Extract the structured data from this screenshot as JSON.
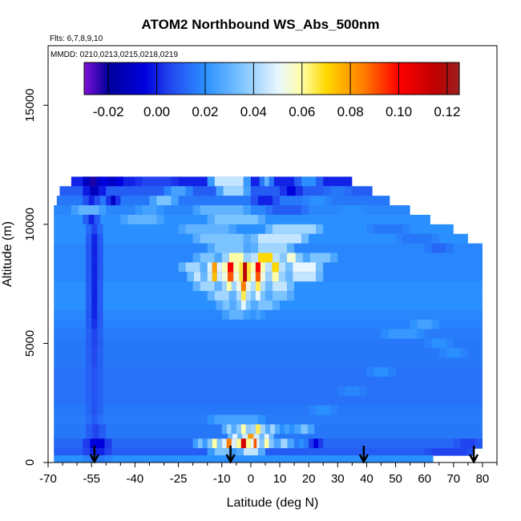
{
  "chart_data": {
    "type": "heatmap",
    "title": "ATOM2 Northbound WS_Abs_500nm",
    "subtitle_flights": "Flts: 6,7,8,9,10",
    "subtitle_dates": "MMDD: 0210,0213,0215,0218,0219",
    "xlabel": "Latitude (deg N)",
    "ylabel": "Altitude (m)",
    "xlim": [
      -70,
      85
    ],
    "ylim": [
      0,
      17500
    ],
    "x_ticks": [
      -70,
      -55,
      -40,
      -25,
      -10,
      0,
      10,
      20,
      30,
      40,
      50,
      60,
      70,
      80
    ],
    "x_minor_ticks": [
      -65,
      -60,
      -50,
      -45,
      -35,
      -30,
      -20,
      -15,
      -5,
      5,
      15,
      25,
      35,
      45,
      55,
      65,
      75,
      85
    ],
    "y_ticks": [
      0,
      5000,
      10000,
      15000
    ],
    "colorbar": {
      "range": [
        -0.03,
        0.125
      ],
      "ticks": [
        -0.02,
        0.0,
        0.02,
        0.04,
        0.06,
        0.08,
        0.1,
        0.12
      ],
      "tick_labels": [
        "-0.02",
        "0.00",
        "0.02",
        "0.04",
        "0.06",
        "0.08",
        "0.10",
        "0.12"
      ],
      "color_stops": [
        {
          "value": -0.03,
          "color": "#7f10d8"
        },
        {
          "value": -0.02,
          "color": "#00009a"
        },
        {
          "value": -0.005,
          "color": "#0000dd"
        },
        {
          "value": 0.005,
          "color": "#2244ee"
        },
        {
          "value": 0.02,
          "color": "#2a90ff"
        },
        {
          "value": 0.035,
          "color": "#7cc4ff"
        },
        {
          "value": 0.05,
          "color": "#e8f6ff"
        },
        {
          "value": 0.06,
          "color": "#ffffa8"
        },
        {
          "value": 0.07,
          "color": "#ffd800"
        },
        {
          "value": 0.085,
          "color": "#ff8000"
        },
        {
          "value": 0.1,
          "color": "#ff0000"
        },
        {
          "value": 0.115,
          "color": "#c00000"
        },
        {
          "value": 0.125,
          "color": "#9b2020"
        }
      ]
    },
    "flight_track_latitudes": [
      -54,
      -7,
      39,
      77
    ],
    "cells": [
      {
        "alt": [
          11600,
          12000
        ],
        "lat": [
          -62,
          35
        ],
        "v": 0.0,
        "feat": [
          [
            -58,
            -51,
            -0.022
          ],
          [
            -52,
            -44,
            -0.01
          ],
          [
            -40,
            -25,
            0.005
          ],
          [
            -15,
            0,
            0.045
          ],
          [
            3,
            8,
            0.03
          ],
          [
            15,
            25,
            0.02
          ]
        ]
      },
      {
        "alt": [
          11200,
          11600
        ],
        "lat": [
          -66,
          42
        ],
        "v": 0.01,
        "feat": [
          [
            -58,
            -50,
            -0.012
          ],
          [
            -30,
            -20,
            0.025
          ],
          [
            -12,
            0,
            0.04
          ],
          [
            10,
            18,
            -0.005
          ],
          [
            25,
            35,
            0.015
          ]
        ]
      },
      {
        "alt": [
          10800,
          11200
        ],
        "lat": [
          -67,
          48
        ],
        "v": 0.015,
        "feat": [
          [
            -58,
            -52,
            0.0
          ],
          [
            -50,
            -45,
            -0.01
          ],
          [
            -35,
            -25,
            0.035
          ],
          [
            0,
            10,
            0.0
          ],
          [
            18,
            28,
            0.02
          ]
        ]
      },
      {
        "alt": [
          10400,
          10800
        ],
        "lat": [
          -68,
          55
        ],
        "v": 0.018,
        "feat": [
          [
            -62,
            -50,
            0.03
          ],
          [
            -40,
            -30,
            0.025
          ],
          [
            -20,
            0,
            0.03
          ],
          [
            5,
            20,
            0.01
          ],
          [
            30,
            40,
            0.02
          ]
        ]
      },
      {
        "alt": [
          10000,
          10400
        ],
        "lat": [
          -68,
          62
        ],
        "v": 0.02,
        "feat": [
          [
            -58,
            -52,
            0.0
          ],
          [
            -45,
            -30,
            0.03
          ],
          [
            -15,
            5,
            0.035
          ],
          [
            20,
            35,
            0.02
          ]
        ]
      },
      {
        "alt": [
          9600,
          10000
        ],
        "lat": [
          -68,
          70
        ],
        "v": 0.02,
        "feat": [
          [
            -57,
            -51,
            0.005
          ],
          [
            -25,
            -5,
            0.03
          ],
          [
            5,
            25,
            0.04
          ],
          [
            40,
            55,
            0.015
          ]
        ]
      },
      {
        "alt": [
          9200,
          9600
        ],
        "lat": [
          -68,
          75
        ],
        "v": 0.02,
        "feat": [
          [
            -57,
            -51,
            0.0
          ],
          [
            -20,
            0,
            0.035
          ],
          [
            0,
            20,
            0.045
          ],
          [
            50,
            65,
            0.015
          ]
        ]
      },
      {
        "alt": [
          8800,
          9200
        ],
        "lat": [
          -68,
          80
        ],
        "v": 0.018,
        "feat": [
          [
            -57,
            -51,
            0.0
          ],
          [
            -15,
            0,
            0.035
          ],
          [
            0,
            15,
            0.04
          ],
          [
            60,
            70,
            0.012
          ]
        ]
      },
      {
        "alt": [
          8400,
          8800
        ],
        "lat": [
          -68,
          80
        ],
        "v": 0.018,
        "feat": [
          [
            -57,
            -51,
            0.0
          ],
          [
            -20,
            -10,
            0.035
          ],
          [
            -10,
            0,
            0.06
          ],
          [
            0,
            10,
            0.07
          ],
          [
            10,
            18,
            0.055
          ],
          [
            18,
            30,
            0.035
          ]
        ]
      },
      {
        "alt": [
          8000,
          8400
        ],
        "lat": [
          -68,
          80
        ],
        "v": 0.018,
        "feat": [
          [
            -57,
            -51,
            0.0
          ],
          [
            -25,
            -15,
            0.04
          ],
          [
            -15,
            -10,
            0.08
          ],
          [
            -10,
            -4,
            0.1
          ],
          [
            -4,
            0,
            0.115
          ],
          [
            0,
            5,
            0.1
          ],
          [
            5,
            12,
            0.07
          ],
          [
            12,
            25,
            0.05
          ]
        ]
      },
      {
        "alt": [
          7600,
          8000
        ],
        "lat": [
          -68,
          80
        ],
        "v": 0.018,
        "feat": [
          [
            -57,
            -51,
            0.0
          ],
          [
            -22,
            -15,
            0.045
          ],
          [
            -15,
            -10,
            0.075
          ],
          [
            -10,
            -4,
            0.09
          ],
          [
            -4,
            0,
            0.115
          ],
          [
            0,
            5,
            0.09
          ],
          [
            5,
            12,
            0.06
          ],
          [
            12,
            25,
            0.045
          ]
        ]
      },
      {
        "alt": [
          7200,
          7600
        ],
        "lat": [
          -68,
          80
        ],
        "v": 0.02,
        "feat": [
          [
            -57,
            -51,
            0.0
          ],
          [
            -20,
            -10,
            0.04
          ],
          [
            -10,
            -5,
            0.06
          ],
          [
            -5,
            0,
            0.085
          ],
          [
            0,
            5,
            0.065
          ],
          [
            5,
            15,
            0.045
          ]
        ]
      },
      {
        "alt": [
          6800,
          7200
        ],
        "lat": [
          -68,
          80
        ],
        "v": 0.02,
        "feat": [
          [
            -57,
            -51,
            0.0
          ],
          [
            -15,
            -5,
            0.04
          ],
          [
            -5,
            0,
            0.065
          ],
          [
            0,
            5,
            0.05
          ],
          [
            5,
            15,
            0.035
          ]
        ]
      },
      {
        "alt": [
          6400,
          6800
        ],
        "lat": [
          -68,
          80
        ],
        "v": 0.02,
        "feat": [
          [
            -57,
            -51,
            0.0
          ],
          [
            -12,
            -5,
            0.035
          ],
          [
            -5,
            0,
            0.05
          ],
          [
            0,
            10,
            0.035
          ]
        ]
      },
      {
        "alt": [
          6000,
          6400
        ],
        "lat": [
          -68,
          80
        ],
        "v": 0.018,
        "feat": [
          [
            -57,
            -51,
            0.0
          ],
          [
            -10,
            0,
            0.03
          ],
          [
            0,
            5,
            0.025
          ]
        ]
      },
      {
        "alt": [
          5600,
          6000
        ],
        "lat": [
          -68,
          80
        ],
        "v": 0.017,
        "feat": [
          [
            -57,
            -51,
            0.002
          ],
          [
            55,
            65,
            0.025
          ]
        ]
      },
      {
        "alt": [
          5200,
          5600
        ],
        "lat": [
          -68,
          80
        ],
        "v": 0.016,
        "feat": [
          [
            -57,
            -51,
            0.005
          ],
          [
            45,
            60,
            0.022
          ]
        ]
      },
      {
        "alt": [
          4800,
          5200
        ],
        "lat": [
          -68,
          80
        ],
        "v": 0.015,
        "feat": [
          [
            -57,
            -51,
            0.005
          ],
          [
            60,
            70,
            0.02
          ]
        ]
      },
      {
        "alt": [
          4400,
          4800
        ],
        "lat": [
          -68,
          80
        ],
        "v": 0.015,
        "feat": [
          [
            -57,
            -51,
            0.006
          ],
          [
            65,
            75,
            0.02
          ]
        ]
      },
      {
        "alt": [
          4000,
          4400
        ],
        "lat": [
          -68,
          80
        ],
        "v": 0.015,
        "feat": [
          [
            -57,
            -51,
            0.006
          ]
        ]
      },
      {
        "alt": [
          3600,
          4000
        ],
        "lat": [
          -68,
          80
        ],
        "v": 0.014,
        "feat": [
          [
            -57,
            -51,
            0.008
          ],
          [
            40,
            50,
            0.02
          ]
        ]
      },
      {
        "alt": [
          3200,
          3600
        ],
        "lat": [
          -68,
          80
        ],
        "v": 0.014,
        "feat": [
          [
            -57,
            -51,
            0.008
          ]
        ]
      },
      {
        "alt": [
          2800,
          3200
        ],
        "lat": [
          -68,
          80
        ],
        "v": 0.014,
        "feat": [
          [
            -57,
            -51,
            0.008
          ],
          [
            30,
            40,
            0.018
          ]
        ]
      },
      {
        "alt": [
          2400,
          2800
        ],
        "lat": [
          -68,
          80
        ],
        "v": 0.014,
        "feat": [
          [
            -57,
            -51,
            0.008
          ]
        ]
      },
      {
        "alt": [
          2000,
          2400
        ],
        "lat": [
          -68,
          80
        ],
        "v": 0.015,
        "feat": [
          [
            -57,
            -51,
            0.008
          ],
          [
            20,
            30,
            0.02
          ]
        ]
      },
      {
        "alt": [
          1600,
          2000
        ],
        "lat": [
          -68,
          80
        ],
        "v": 0.016,
        "feat": [
          [
            -57,
            -51,
            0.01
          ],
          [
            -15,
            5,
            0.025
          ]
        ]
      },
      {
        "alt": [
          1200,
          1600
        ],
        "lat": [
          -68,
          80
        ],
        "v": 0.015,
        "feat": [
          [
            -57,
            -50,
            0.005
          ],
          [
            -10,
            -5,
            0.04
          ],
          [
            -5,
            0,
            0.06
          ],
          [
            0,
            5,
            0.065
          ],
          [
            5,
            10,
            0.04
          ],
          [
            10,
            15,
            0.025
          ],
          [
            15,
            22,
            0.035
          ],
          [
            22,
            30,
            0.015
          ]
        ]
      },
      {
        "alt": [
          1000,
          1200
        ],
        "lat": [
          -68,
          80
        ],
        "v": 0.015,
        "feat": [
          [
            -57,
            -50,
            0.005
          ],
          [
            -8,
            -3,
            0.05
          ],
          [
            -3,
            3,
            0.08
          ],
          [
            3,
            8,
            0.05
          ]
        ]
      },
      {
        "alt": [
          600,
          1000
        ],
        "lat": [
          -68,
          80
        ],
        "v": 0.012,
        "feat": [
          [
            -58,
            -48,
            -0.005
          ],
          [
            -20,
            -15,
            0.035
          ],
          [
            -15,
            -10,
            0.06
          ],
          [
            -10,
            -5,
            0.085
          ],
          [
            -5,
            0,
            0.11
          ],
          [
            0,
            3,
            0.09
          ],
          [
            3,
            8,
            0.06
          ],
          [
            8,
            15,
            0.04
          ],
          [
            15,
            20,
            0.02
          ],
          [
            20,
            25,
            -0.005
          ],
          [
            70,
            80,
            0.005
          ]
        ]
      },
      {
        "alt": [
          300,
          600
        ],
        "lat": [
          -68,
          77
        ],
        "v": 0.01,
        "feat": [
          [
            -58,
            -48,
            0.0
          ],
          [
            -15,
            -5,
            0.035
          ],
          [
            -5,
            5,
            0.045
          ],
          [
            60,
            77,
            0.005
          ]
        ]
      },
      {
        "alt": [
          0,
          300
        ],
        "lat": [
          -68,
          63
        ],
        "v": 0.02,
        "feat": [
          [
            -58,
            -48,
            0.015
          ]
        ]
      }
    ]
  }
}
